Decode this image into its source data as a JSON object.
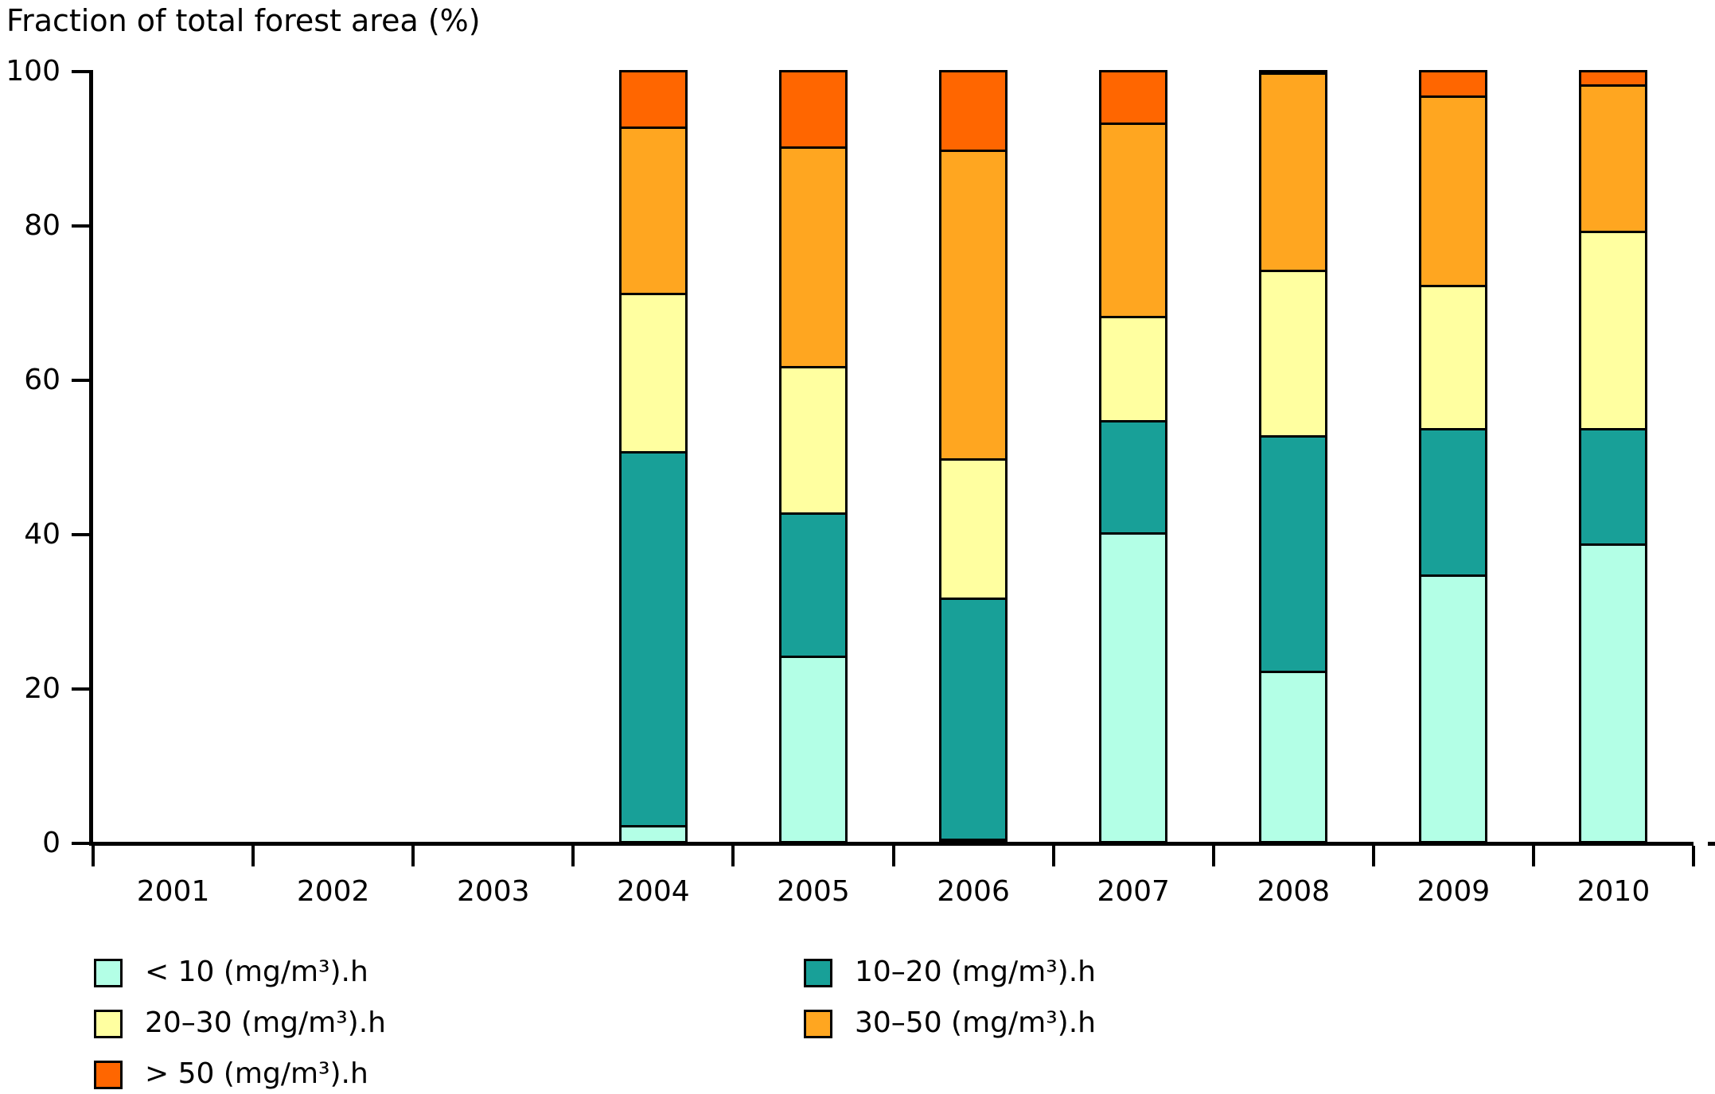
{
  "title": "Fraction of total forest area (%)",
  "chart_data": {
    "type": "bar",
    "stacked": true,
    "title": "Fraction of total forest area (%)",
    "xlabel": "",
    "ylabel": "Fraction of total forest area (%)",
    "ylim": [
      0,
      100
    ],
    "yticks": [
      0,
      20,
      40,
      60,
      80,
      100
    ],
    "grid": false,
    "legend_position": "bottom",
    "categories": [
      "2001",
      "2002",
      "2003",
      "2004",
      "2005",
      "2006",
      "2007",
      "2008",
      "2009",
      "2010"
    ],
    "series": [
      {
        "name": "< 10 (mg/m³).h",
        "color": "#B3FFE6",
        "values": [
          0,
          0,
          0,
          2,
          24,
          0.3,
          40,
          22,
          34.5,
          38.5
        ]
      },
      {
        "name": "10–20 (mg/m³).h",
        "color": "#18A098",
        "values": [
          0,
          0,
          0,
          48.5,
          18.5,
          31.2,
          14.5,
          30.5,
          19,
          15
        ]
      },
      {
        "name": "20–30 (mg/m³).h",
        "color": "#FFFFA0",
        "values": [
          0,
          0,
          0,
          20.5,
          19,
          18,
          13.5,
          21.5,
          18.5,
          25.5
        ]
      },
      {
        "name": "30–50 (mg/m³).h",
        "color": "#FFA620",
        "values": [
          0,
          0,
          0,
          21.5,
          28.5,
          40,
          25,
          25.5,
          24.5,
          19
        ]
      },
      {
        "name": "> 50 (mg/m³).h",
        "color": "#FF6600",
        "values": [
          0,
          0,
          0,
          7.5,
          10,
          10.5,
          7,
          0.5,
          3.5,
          2
        ]
      }
    ],
    "legend_columns": [
      [
        0,
        2,
        4
      ],
      [
        1,
        3
      ]
    ],
    "colors": {
      "axis": "#000000",
      "segment_border": "#000000",
      "background": "#FFFFFF"
    }
  }
}
